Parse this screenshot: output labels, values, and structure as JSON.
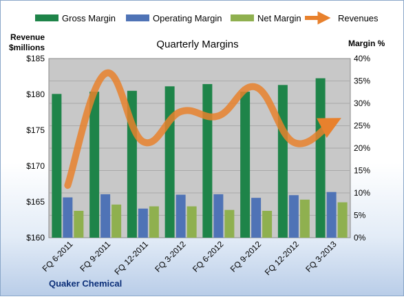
{
  "chart_data": {
    "type": "bar+line",
    "title": "Quarterly Margins",
    "left_axis": {
      "label_line1": "Revenue",
      "label_line2": "$millions",
      "ylim": [
        160,
        185
      ],
      "ticks": [
        "$160",
        "$165",
        "$170",
        "$175",
        "$180",
        "$185"
      ]
    },
    "right_axis": {
      "label": "Margin %",
      "ylim": [
        0,
        40
      ],
      "ticks": [
        "0%",
        "5%",
        "10%",
        "15%",
        "20%",
        "25%",
        "30%",
        "35%",
        "40%"
      ]
    },
    "categories": [
      "FQ 6-2011",
      "FQ 9-2011",
      "FQ 12-2011",
      "FQ 3-2012",
      "FQ 6-2012",
      "FQ 9-2012",
      "FQ 12-2012",
      "FQ 3-2013"
    ],
    "series": [
      {
        "name": "Gross Margin",
        "axis": "right",
        "kind": "bar",
        "color": "#1e8449",
        "values": [
          32.1,
          32.6,
          32.8,
          33.8,
          34.3,
          32.6,
          34.1,
          35.6
        ]
      },
      {
        "name": "Operating Margin",
        "axis": "right",
        "kind": "bar",
        "color": "#4f73b6",
        "values": [
          9.0,
          9.7,
          6.5,
          9.6,
          9.7,
          8.9,
          9.5,
          10.2
        ]
      },
      {
        "name": "Net Margin",
        "axis": "right",
        "kind": "bar",
        "color": "#8fb04f",
        "values": [
          6.0,
          7.4,
          7.0,
          7.0,
          6.2,
          6.0,
          8.5,
          7.9
        ]
      },
      {
        "name": "Revenues",
        "axis": "left",
        "kind": "line",
        "color": "#e8812d",
        "values": [
          167.3,
          182.9,
          173.4,
          177.6,
          177.0,
          181.0,
          173.3,
          176.0
        ]
      }
    ],
    "grid": true,
    "legend_position": "top",
    "footer": "Quaker Chemical"
  }
}
